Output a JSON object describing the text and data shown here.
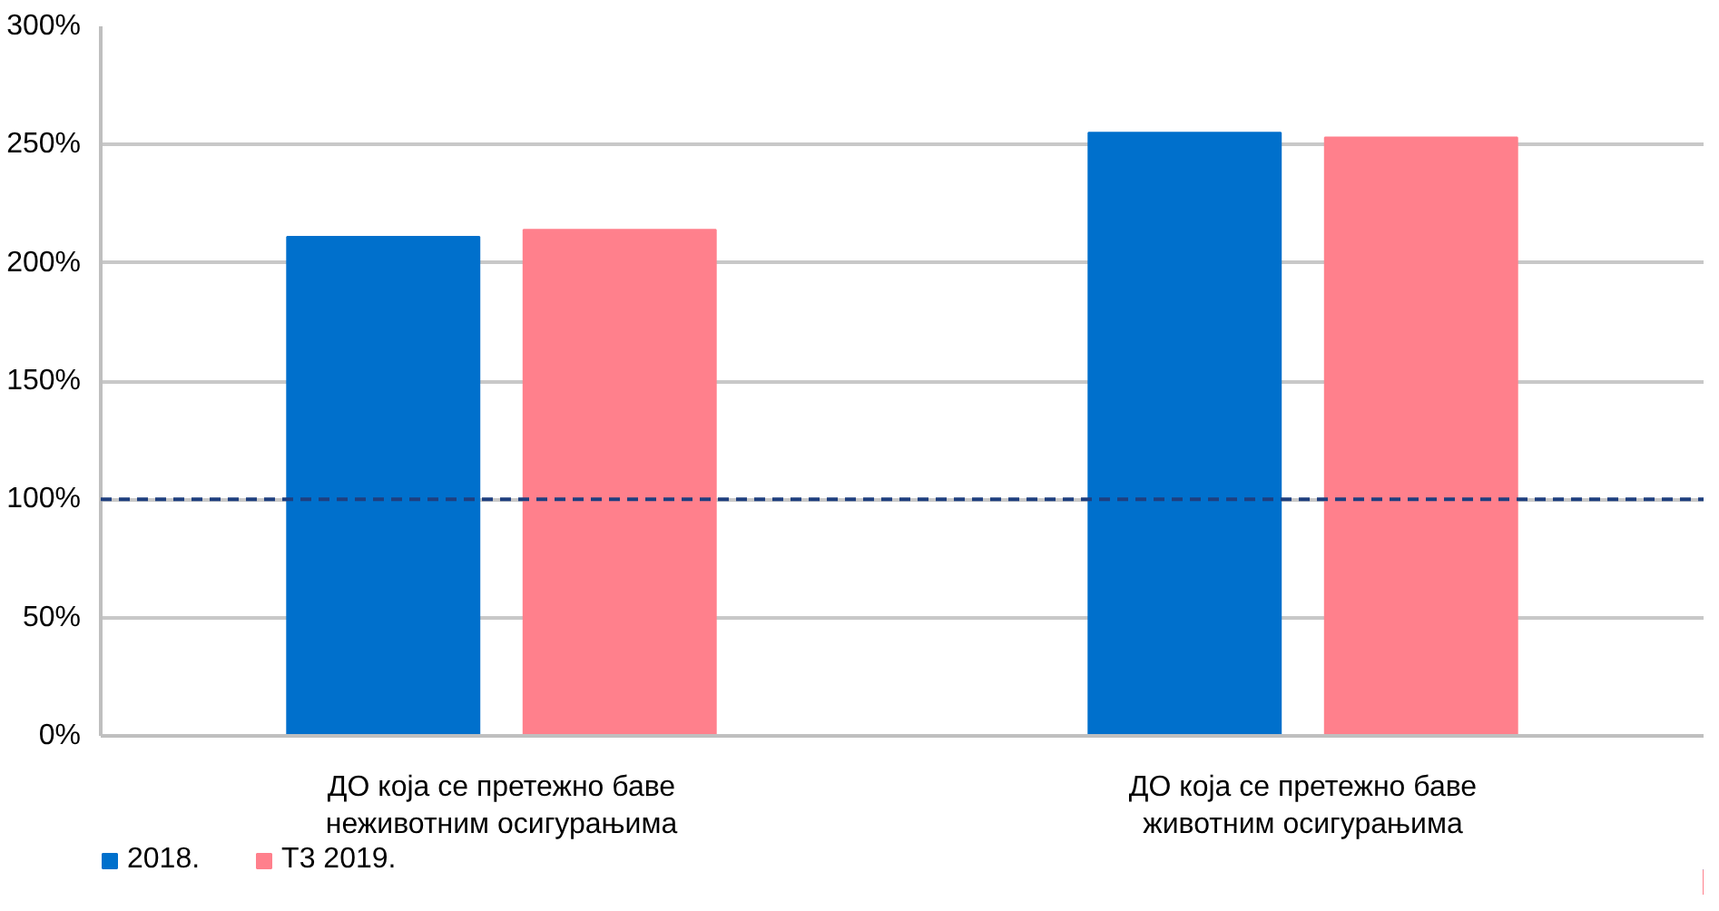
{
  "chart_data": {
    "type": "bar",
    "categories": [
      "ДО која се претежно баве\nнеживотним осигурањима",
      "ДО која се претежно баве\nживотним осигурањима"
    ],
    "series": [
      {
        "name": "2018.",
        "color": "#0070cc",
        "values": [
          211,
          255
        ]
      },
      {
        "name": "Т3 2019.",
        "color": "#ff808c",
        "values": [
          214,
          253
        ]
      }
    ],
    "ylim": [
      0,
      300
    ],
    "yticks": [
      {
        "value": 0,
        "label": "0%"
      },
      {
        "value": 50,
        "label": "50%"
      },
      {
        "value": 100,
        "label": "100%"
      },
      {
        "value": 150,
        "label": "150%"
      },
      {
        "value": 200,
        "label": "200%"
      },
      {
        "value": 250,
        "label": "250%"
      },
      {
        "value": 300,
        "label": "300%"
      }
    ],
    "ref_lines": [
      {
        "axis": "y",
        "value": 100,
        "color": "#1f3f7f",
        "line_style": "dashed"
      }
    ],
    "grid": "y",
    "legend": "bottom left"
  }
}
